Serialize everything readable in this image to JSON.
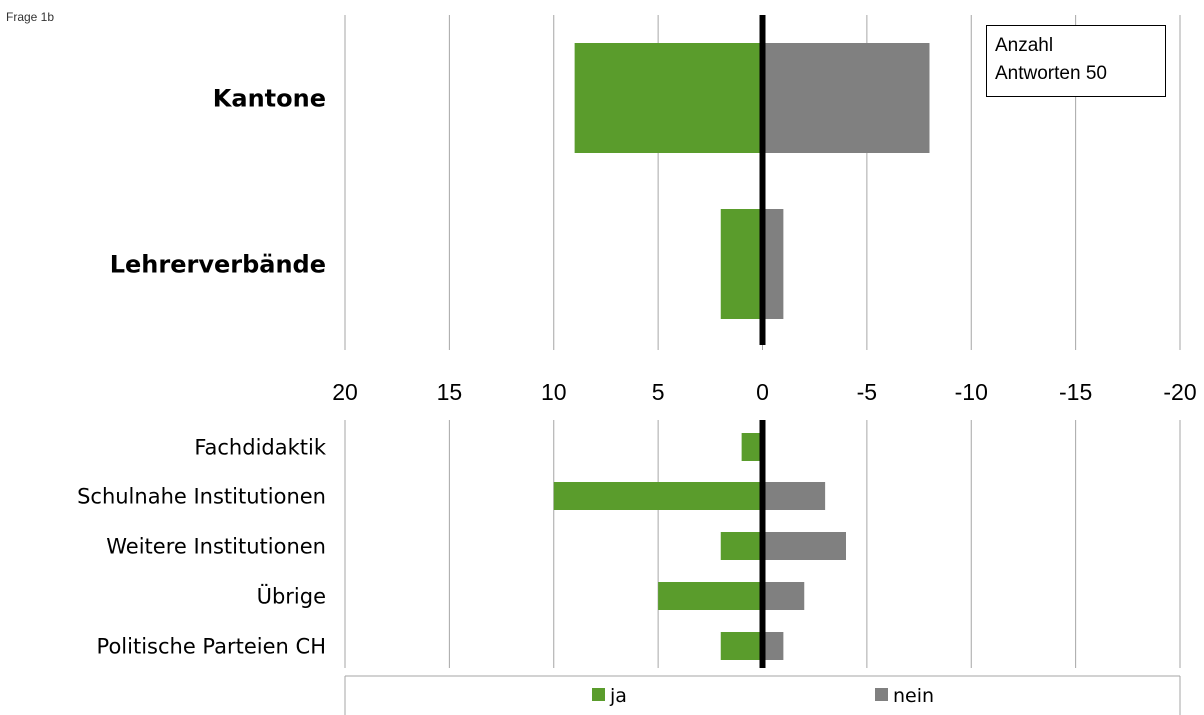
{
  "corner_label": "Frage 1b",
  "info_box": {
    "line1": "Anzahl",
    "line2": "Antworten 50"
  },
  "chart_data": {
    "type": "bar",
    "orientation": "horizontal",
    "stacked": "diverging",
    "x_axis": {
      "ticks": [
        20,
        15,
        10,
        5,
        0,
        -5,
        -10,
        -15,
        -20
      ],
      "tick_labels": [
        "20",
        "15",
        "10",
        "5",
        "0",
        "-5",
        "-10",
        "-15",
        "-20"
      ],
      "range": [
        20,
        -20
      ],
      "reversed": true
    },
    "grid": "vertical",
    "legend_position": "bottom",
    "colors": {
      "ja": "#5a9c2c",
      "nein": "#808080",
      "zero_line": "#000000"
    },
    "panels": [
      {
        "categories": [
          "Kantone",
          "Lehrerverbände"
        ],
        "label_style": "bold",
        "series": [
          {
            "name": "ja",
            "values": [
              9,
              2
            ]
          },
          {
            "name": "nein",
            "values": [
              -8,
              -1
            ]
          }
        ]
      },
      {
        "categories": [
          "Fachdidaktik",
          "Schulnahe Institutionen",
          "Weitere Institutionen",
          "Übrige",
          "Politische Parteien CH"
        ],
        "label_style": "normal",
        "series": [
          {
            "name": "ja",
            "values": [
              1,
              10,
              2,
              5,
              2
            ]
          },
          {
            "name": "nein",
            "values": [
              0,
              -3,
              -4,
              -2,
              -1
            ]
          }
        ]
      }
    ],
    "legend": [
      "ja",
      "nein"
    ]
  }
}
